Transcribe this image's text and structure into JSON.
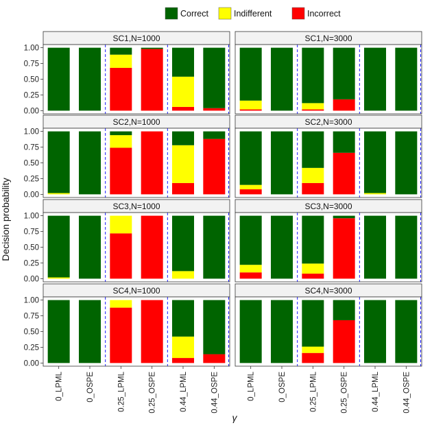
{
  "chart_data": {
    "type": "bar",
    "stacked": true,
    "title": "",
    "xlabel": "γ",
    "ylabel": "Decision probability",
    "ylim": [
      0,
      1
    ],
    "yticks": [
      "0.00",
      "0.25",
      "0.50",
      "0.75",
      "1.00"
    ],
    "categories": [
      "0_LPML",
      "0_OSPE",
      "0.25_LPML",
      "0.25_OSPE",
      "0.44_LPML",
      "0.44_OSPE"
    ],
    "legend": {
      "position": "top",
      "entries": [
        {
          "name": "Correct",
          "color": "#006400"
        },
        {
          "name": "Indifferent",
          "color": "#ffff00"
        },
        {
          "name": "Incorrect",
          "color": "#ff0000"
        }
      ]
    },
    "panels": [
      {
        "label": "SC1,N=1000",
        "incorrect": [
          0,
          0,
          0.68,
          0.98,
          0.06,
          0.04
        ],
        "indifferent": [
          0,
          0,
          0.21,
          0,
          0.48,
          0
        ],
        "correct": [
          1,
          1,
          0.11,
          0.02,
          0.46,
          0.96
        ]
      },
      {
        "label": "SC1,N=3000",
        "incorrect": [
          0.02,
          0,
          0.02,
          0.18,
          0,
          0
        ],
        "indifferent": [
          0.14,
          0,
          0.1,
          0,
          0,
          0
        ],
        "correct": [
          0.84,
          1,
          0.88,
          0.82,
          1,
          1
        ]
      },
      {
        "label": "SC2,N=1000",
        "incorrect": [
          0,
          0,
          0.74,
          1.0,
          0.18,
          0.88
        ],
        "indifferent": [
          0.02,
          0,
          0.2,
          0,
          0.6,
          0
        ],
        "correct": [
          0.98,
          1,
          0.06,
          0,
          0.22,
          0.12
        ]
      },
      {
        "label": "SC2,N=3000",
        "incorrect": [
          0.08,
          0,
          0.18,
          0.66,
          0,
          0
        ],
        "indifferent": [
          0.07,
          0,
          0.24,
          0,
          0.02,
          0
        ],
        "correct": [
          0.85,
          1,
          0.58,
          0.34,
          0.98,
          1
        ]
      },
      {
        "label": "SC3,N=1000",
        "incorrect": [
          0,
          0,
          0.72,
          1.0,
          0,
          0
        ],
        "indifferent": [
          0.02,
          0,
          0.28,
          0,
          0.12,
          0
        ],
        "correct": [
          0.98,
          1,
          0,
          0,
          0.88,
          1
        ]
      },
      {
        "label": "SC3,N=3000",
        "incorrect": [
          0.1,
          0,
          0.08,
          0.96,
          0,
          0
        ],
        "indifferent": [
          0.12,
          0,
          0.16,
          0,
          0,
          0
        ],
        "correct": [
          0.78,
          1,
          0.76,
          0.04,
          1,
          1
        ]
      },
      {
        "label": "SC4,N=1000",
        "incorrect": [
          0,
          0,
          0.88,
          1.0,
          0.08,
          0.14
        ],
        "indifferent": [
          0,
          0,
          0.12,
          0,
          0.34,
          0
        ],
        "correct": [
          1,
          1,
          0,
          0,
          0.58,
          0.86
        ]
      },
      {
        "label": "SC4,N=3000",
        "incorrect": [
          0,
          0,
          0.16,
          0.68,
          0,
          0
        ],
        "indifferent": [
          0,
          0,
          0.1,
          0,
          0,
          0
        ],
        "correct": [
          1,
          1,
          0.74,
          0.32,
          1,
          1
        ]
      }
    ]
  }
}
